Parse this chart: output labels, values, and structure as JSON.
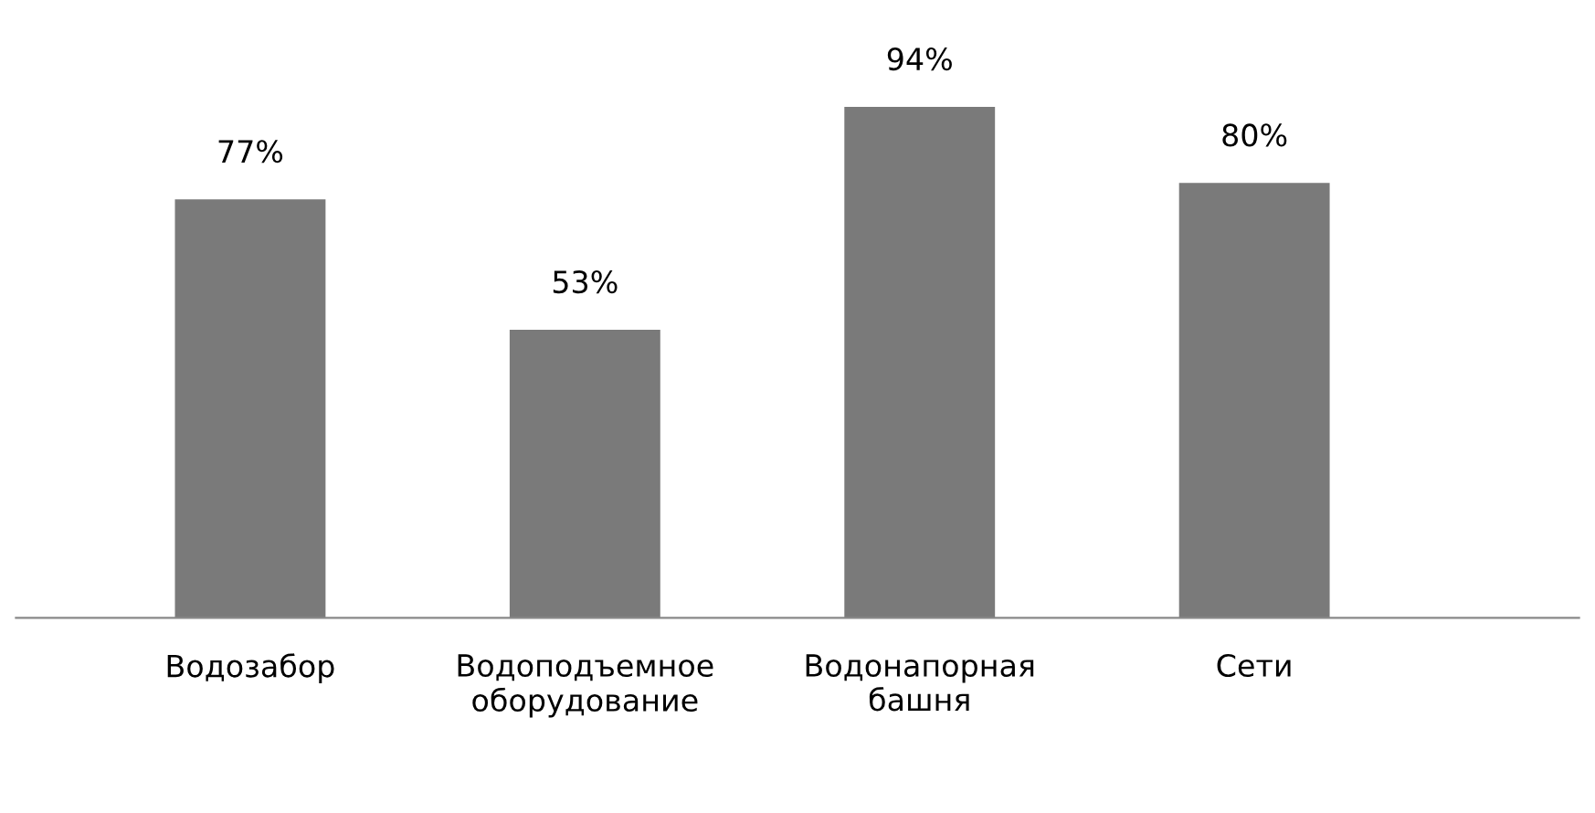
{
  "chart_data": {
    "type": "bar",
    "categories": [
      "Водозабор",
      "Водоподъемное\nоборудование",
      "Водонапорная\nбашня",
      "Сети"
    ],
    "values": [
      77,
      53,
      94,
      80
    ],
    "value_labels": [
      "77%",
      "53%",
      "94%",
      "80%"
    ],
    "color": "#7a7a7a",
    "grid": false,
    "legend": false
  }
}
